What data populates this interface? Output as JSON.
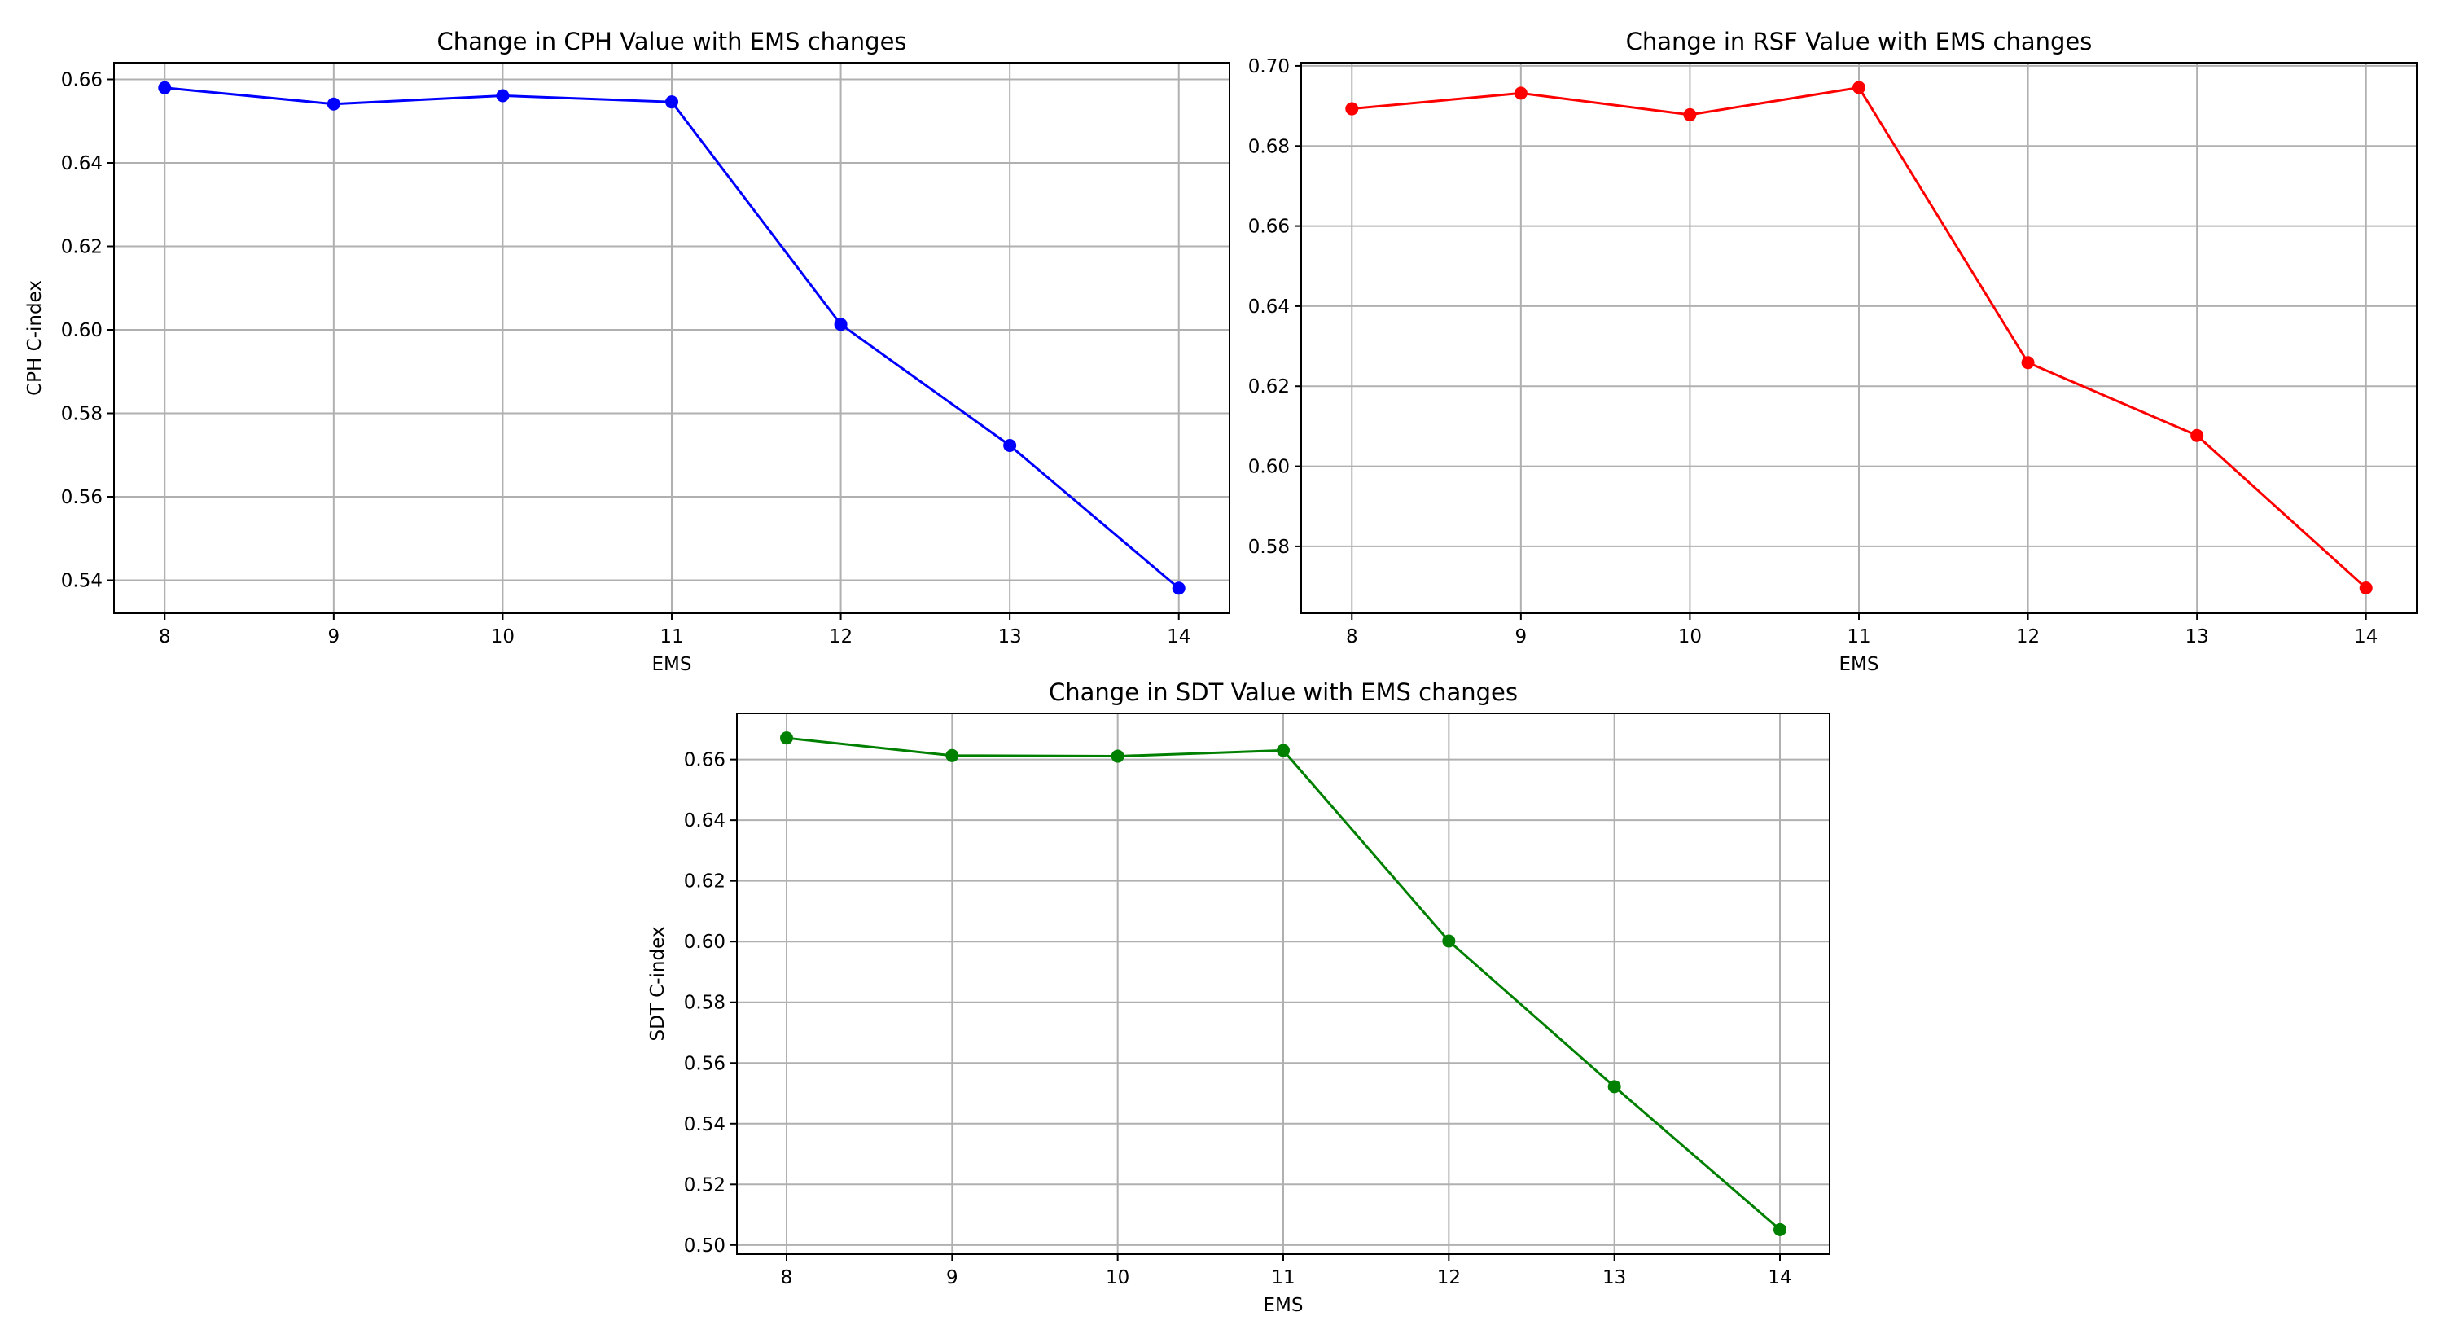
{
  "chart_data": [
    {
      "type": "line",
      "title": "Change in CPH Value with EMS changes",
      "xlabel": "EMS",
      "ylabel": "CPH C-index",
      "x": [
        8,
        9,
        10,
        11,
        12,
        13,
        14
      ],
      "y": [
        0.658,
        0.6541,
        0.6561,
        0.6546,
        0.6013,
        0.5723,
        0.5381
      ],
      "x_ticks": [
        "8",
        "9",
        "10",
        "11",
        "12",
        "13",
        "14"
      ],
      "y_ticks": [
        "0.54",
        "0.56",
        "0.58",
        "0.60",
        "0.62",
        "0.64",
        "0.66"
      ],
      "ylim": [
        0.5321,
        0.664
      ],
      "xlim": [
        7.7,
        14.3
      ],
      "grid": true,
      "color": "#0000ff",
      "marker": "circle"
    },
    {
      "type": "line",
      "title": "Change in RSF Value with EMS changes",
      "xlabel": "EMS",
      "ylabel": "",
      "x": [
        8,
        9,
        10,
        11,
        12,
        13,
        14
      ],
      "y": [
        0.6893,
        0.6932,
        0.6878,
        0.6946,
        0.6259,
        0.6077,
        0.5696
      ],
      "x_ticks": [
        "8",
        "9",
        "10",
        "11",
        "12",
        "13",
        "14"
      ],
      "y_ticks": [
        "0.58",
        "0.60",
        "0.62",
        "0.64",
        "0.66",
        "0.68",
        "0.70"
      ],
      "ylim": [
        0.5633,
        0.7008
      ],
      "xlim": [
        7.7,
        14.3
      ],
      "grid": true,
      "color": "#ff0000",
      "marker": "circle"
    },
    {
      "type": "line",
      "title": "Change in SDT Value with EMS changes",
      "xlabel": "EMS",
      "ylabel": "SDT C-index",
      "x": [
        8,
        9,
        10,
        11,
        12,
        13,
        14
      ],
      "y": [
        0.6671,
        0.6613,
        0.6611,
        0.663,
        0.6002,
        0.5522,
        0.5051
      ],
      "x_ticks": [
        "8",
        "9",
        "10",
        "11",
        "12",
        "13",
        "14"
      ],
      "y_ticks": [
        "0.50",
        "0.52",
        "0.54",
        "0.56",
        "0.58",
        "0.60",
        "0.62",
        "0.64",
        "0.66"
      ],
      "ylim": [
        0.497,
        0.6752
      ],
      "xlim": [
        7.7,
        14.3
      ],
      "grid": true,
      "color": "#008000",
      "marker": "circle"
    }
  ]
}
